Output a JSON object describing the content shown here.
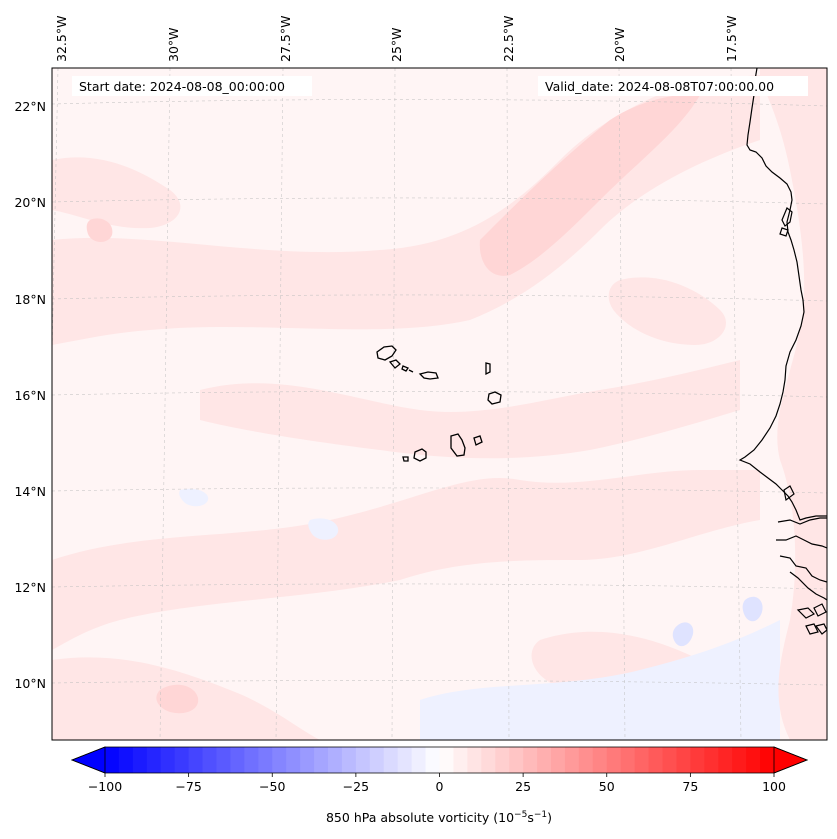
{
  "map": {
    "start_date_text": "Start date: 2024-08-08_00:00:00",
    "valid_date_text": "Valid_date: 2024-08-08T07:00:00.00",
    "lon_labels": [
      "32.5°W",
      "30°W",
      "27.5°W",
      "25°W",
      "22.5°W",
      "20°W",
      "17.5°W"
    ],
    "lat_labels": [
      "22°N",
      "20°N",
      "18°N",
      "16°N",
      "14°N",
      "12°N",
      "10°N"
    ],
    "background_color": "#fff5f5",
    "coastline_color": "#000000",
    "field_colors": {
      "light_pink": "#ffe6e6",
      "mid_pink": "#ffd6d6",
      "light_blue": "#eef1ff",
      "blue": "#dfe3ff"
    }
  },
  "colorbar": {
    "ticks": [
      "−100",
      "−75",
      "−50",
      "−25",
      "0",
      "25",
      "50",
      "75",
      "100"
    ],
    "tick_values": [
      -100,
      -75,
      -50,
      -25,
      0,
      25,
      50,
      75,
      100
    ],
    "label_prefix": "850 hPa absolute vorticity (10",
    "label_exp1": "−5",
    "label_mid": "s",
    "label_exp2": "−1",
    "label_suffix": ")",
    "vmin": -100,
    "vmax": 100,
    "levels": 48,
    "min_color": "#0000ff",
    "mid_color": "#ffffff",
    "max_color": "#ff0000"
  }
}
